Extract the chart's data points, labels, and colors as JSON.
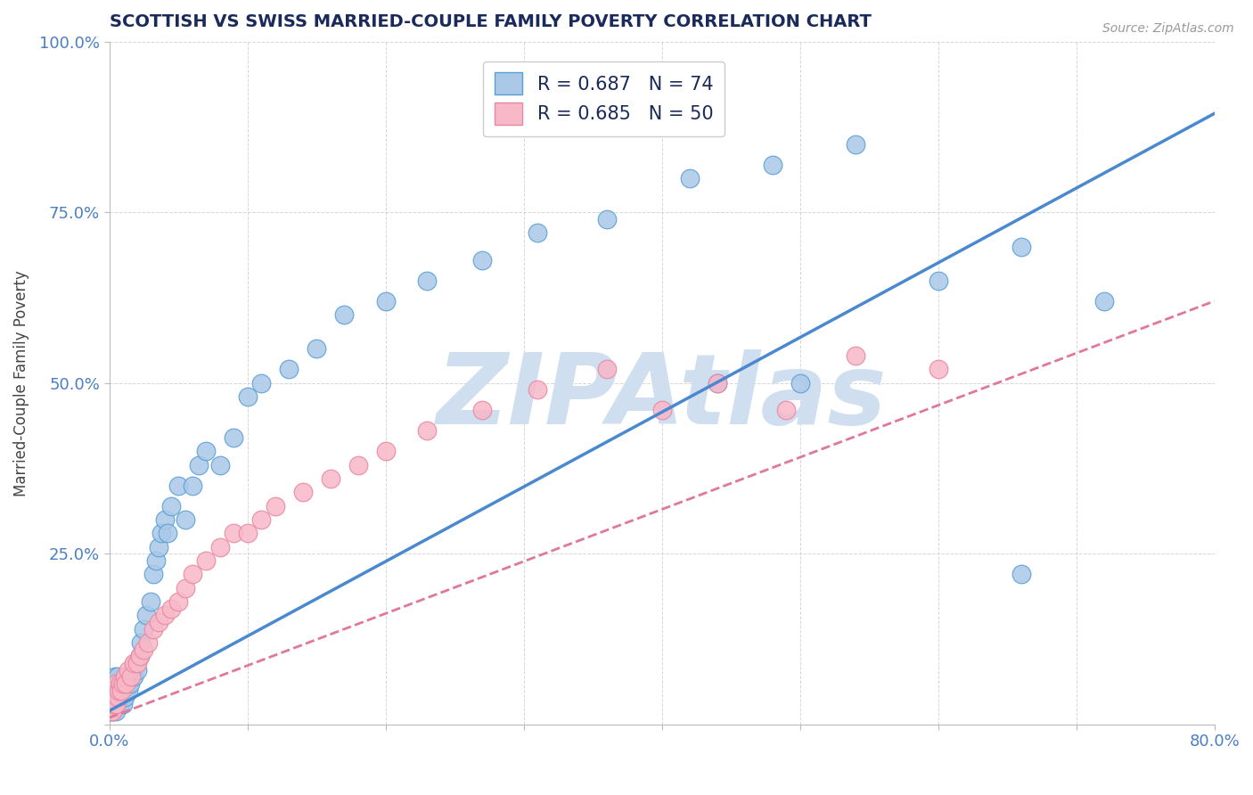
{
  "title": "SCOTTISH VS SWISS MARRIED-COUPLE FAMILY POVERTY CORRELATION CHART",
  "source_text": "Source: ZipAtlas.com",
  "ylabel": "Married-Couple Family Poverty",
  "xlim": [
    0.0,
    0.8
  ],
  "ylim": [
    0.0,
    1.0
  ],
  "xticks": [
    0.0,
    0.1,
    0.2,
    0.3,
    0.4,
    0.5,
    0.6,
    0.7,
    0.8
  ],
  "yticks": [
    0.0,
    0.25,
    0.5,
    0.75,
    1.0
  ],
  "xtick_labels": [
    "0.0%",
    "",
    "",
    "",
    "",
    "",
    "",
    "",
    "80.0%"
  ],
  "ytick_labels": [
    "",
    "25.0%",
    "50.0%",
    "75.0%",
    "100.0%"
  ],
  "scottish_R": 0.687,
  "scottish_N": 74,
  "swiss_R": 0.685,
  "swiss_N": 50,
  "scottish_color": "#aac8e8",
  "scottish_edge_color": "#5a9fd4",
  "scottish_line_color": "#4a88d0",
  "swiss_color": "#f8b8c8",
  "swiss_edge_color": "#e888a0",
  "swiss_line_color": "#e07898",
  "background_color": "#ffffff",
  "grid_color": "#cccccc",
  "title_color": "#1a2a5a",
  "watermark_color": "#d0dff0",
  "scottish_x": [
    0.001,
    0.001,
    0.002,
    0.002,
    0.002,
    0.003,
    0.003,
    0.003,
    0.004,
    0.004,
    0.004,
    0.005,
    0.005,
    0.005,
    0.006,
    0.006,
    0.006,
    0.007,
    0.007,
    0.008,
    0.008,
    0.009,
    0.009,
    0.01,
    0.01,
    0.011,
    0.012,
    0.012,
    0.013,
    0.014,
    0.015,
    0.016,
    0.017,
    0.018,
    0.019,
    0.02,
    0.022,
    0.023,
    0.025,
    0.027,
    0.03,
    0.032,
    0.034,
    0.036,
    0.038,
    0.04,
    0.042,
    0.045,
    0.05,
    0.055,
    0.06,
    0.065,
    0.07,
    0.08,
    0.09,
    0.1,
    0.11,
    0.13,
    0.15,
    0.17,
    0.2,
    0.23,
    0.27,
    0.31,
    0.36,
    0.42,
    0.48,
    0.54,
    0.6,
    0.66,
    0.5,
    0.44,
    0.66,
    0.72
  ],
  "scottish_y": [
    0.02,
    0.04,
    0.02,
    0.03,
    0.05,
    0.02,
    0.04,
    0.06,
    0.03,
    0.05,
    0.07,
    0.02,
    0.04,
    0.06,
    0.03,
    0.05,
    0.07,
    0.04,
    0.06,
    0.03,
    0.05,
    0.04,
    0.06,
    0.03,
    0.05,
    0.04,
    0.05,
    0.07,
    0.06,
    0.05,
    0.06,
    0.07,
    0.08,
    0.07,
    0.09,
    0.08,
    0.1,
    0.12,
    0.14,
    0.16,
    0.18,
    0.22,
    0.24,
    0.26,
    0.28,
    0.3,
    0.28,
    0.32,
    0.35,
    0.3,
    0.35,
    0.38,
    0.4,
    0.38,
    0.42,
    0.48,
    0.5,
    0.52,
    0.55,
    0.6,
    0.62,
    0.65,
    0.68,
    0.72,
    0.74,
    0.8,
    0.82,
    0.85,
    0.65,
    0.7,
    0.5,
    0.5,
    0.22,
    0.62
  ],
  "swiss_x": [
    0.001,
    0.001,
    0.002,
    0.002,
    0.003,
    0.003,
    0.004,
    0.004,
    0.005,
    0.005,
    0.006,
    0.007,
    0.008,
    0.009,
    0.01,
    0.011,
    0.012,
    0.014,
    0.016,
    0.018,
    0.02,
    0.022,
    0.025,
    0.028,
    0.032,
    0.036,
    0.04,
    0.045,
    0.05,
    0.055,
    0.06,
    0.07,
    0.08,
    0.09,
    0.1,
    0.11,
    0.12,
    0.14,
    0.16,
    0.18,
    0.2,
    0.23,
    0.27,
    0.31,
    0.36,
    0.4,
    0.44,
    0.49,
    0.54,
    0.6
  ],
  "swiss_y": [
    0.02,
    0.04,
    0.02,
    0.04,
    0.03,
    0.05,
    0.03,
    0.05,
    0.03,
    0.06,
    0.04,
    0.05,
    0.06,
    0.05,
    0.06,
    0.07,
    0.06,
    0.08,
    0.07,
    0.09,
    0.09,
    0.1,
    0.11,
    0.12,
    0.14,
    0.15,
    0.16,
    0.17,
    0.18,
    0.2,
    0.22,
    0.24,
    0.26,
    0.28,
    0.28,
    0.3,
    0.32,
    0.34,
    0.36,
    0.38,
    0.4,
    0.43,
    0.46,
    0.49,
    0.52,
    0.46,
    0.5,
    0.46,
    0.54,
    0.52
  ],
  "scottish_line_x0": 0.0,
  "scottish_line_y0": 0.02,
  "scottish_line_x1": 0.75,
  "scottish_line_y1": 0.84,
  "swiss_line_x0": 0.0,
  "swiss_line_y0": 0.01,
  "swiss_line_x1": 0.8,
  "swiss_line_y1": 0.62
}
